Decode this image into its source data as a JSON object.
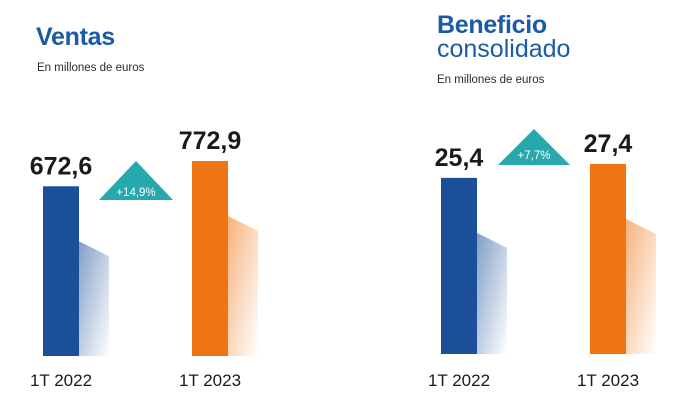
{
  "colors": {
    "title": "#1b5aa6",
    "bar_2022": "#1b4f99",
    "bar_2023": "#ef7413",
    "badge": "#27a8ad"
  },
  "chart_data": [
    {
      "type": "bar",
      "title": "Ventas",
      "title_line2": "",
      "subtitle": "En millones de euros",
      "categories": [
        "1T 2022",
        "1T 2023"
      ],
      "values": [
        672.6,
        772.9
      ],
      "value_labels": [
        "672,6",
        "772,9"
      ],
      "change_label": "+14,9%"
    },
    {
      "type": "bar",
      "title": "Beneficio",
      "title_line2": "consolidado",
      "subtitle": "En millones de euros",
      "categories": [
        "1T 2022",
        "1T 2023"
      ],
      "values": [
        25.4,
        27.4
      ],
      "value_labels": [
        "25,4",
        "27,4"
      ],
      "change_label": "+7,7%"
    }
  ]
}
